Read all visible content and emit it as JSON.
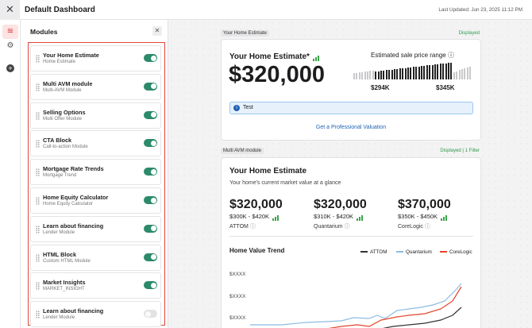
{
  "header": {
    "title": "Default Dashboard",
    "last_updated": "Last Updated: Jun 23, 2025 11:12 PM"
  },
  "modules_panel": {
    "title": "Modules",
    "items": [
      {
        "title": "Your Home Estimate",
        "subtitle": "Home Estimate",
        "enabled": true
      },
      {
        "title": "Multi AVM module",
        "subtitle": "Multi-AVM Module",
        "enabled": true
      },
      {
        "title": "Selling Options",
        "subtitle": "Multi Offer Module",
        "enabled": true
      },
      {
        "title": "CTA Block",
        "subtitle": "Call-to-action Module",
        "enabled": true
      },
      {
        "title": "Mortgage Rate Trends",
        "subtitle": "Mortgage Trend",
        "enabled": true
      },
      {
        "title": "Home Equity Calculator",
        "subtitle": "Home Equity Calculator",
        "enabled": true
      },
      {
        "title": "Learn about financing",
        "subtitle": "Lender Module",
        "enabled": true
      },
      {
        "title": "HTML Block",
        "subtitle": "Custom HTML Module",
        "enabled": true
      },
      {
        "title": "Market Insights",
        "subtitle": "MARKET_INSIGHT",
        "enabled": true
      },
      {
        "title": "Learn about financing",
        "subtitle": "Lender Module",
        "enabled": false
      }
    ]
  },
  "preview": {
    "home_estimate": {
      "tag": "Your Home Estimate",
      "status": "Displayed",
      "heading": "Your Home Estimate*",
      "value": "$320,000",
      "range_label": "Estimated sale price range",
      "range_low": "$294K",
      "range_high": "$345K",
      "notice": "Test",
      "link": "Get a Professional Valuation"
    },
    "multi_avm": {
      "tag": "Multi AVM module",
      "status": "Displayed | 1 Filter",
      "heading": "Your Home Estimate",
      "subheading": "Your home's current market value at a glance",
      "providers": [
        {
          "value": "$320,000",
          "range": "$300K - $420K",
          "name": "ATTOM"
        },
        {
          "value": "$320,000",
          "range": "$310K - $420K",
          "name": "Quantarium"
        },
        {
          "value": "$370,000",
          "range": "$350K - $450K",
          "name": "CoreLogic"
        }
      ],
      "trend": {
        "title": "Home Value Trend",
        "legend": [
          {
            "name": "ATTOM",
            "color": "#333333"
          },
          {
            "name": "Quantarium",
            "color": "#8dbbe0"
          },
          {
            "name": "CoreLogic",
            "color": "#e2452b"
          }
        ],
        "y_labels": [
          "$XXXX",
          "$XXXX",
          "$XXXX"
        ]
      }
    }
  }
}
